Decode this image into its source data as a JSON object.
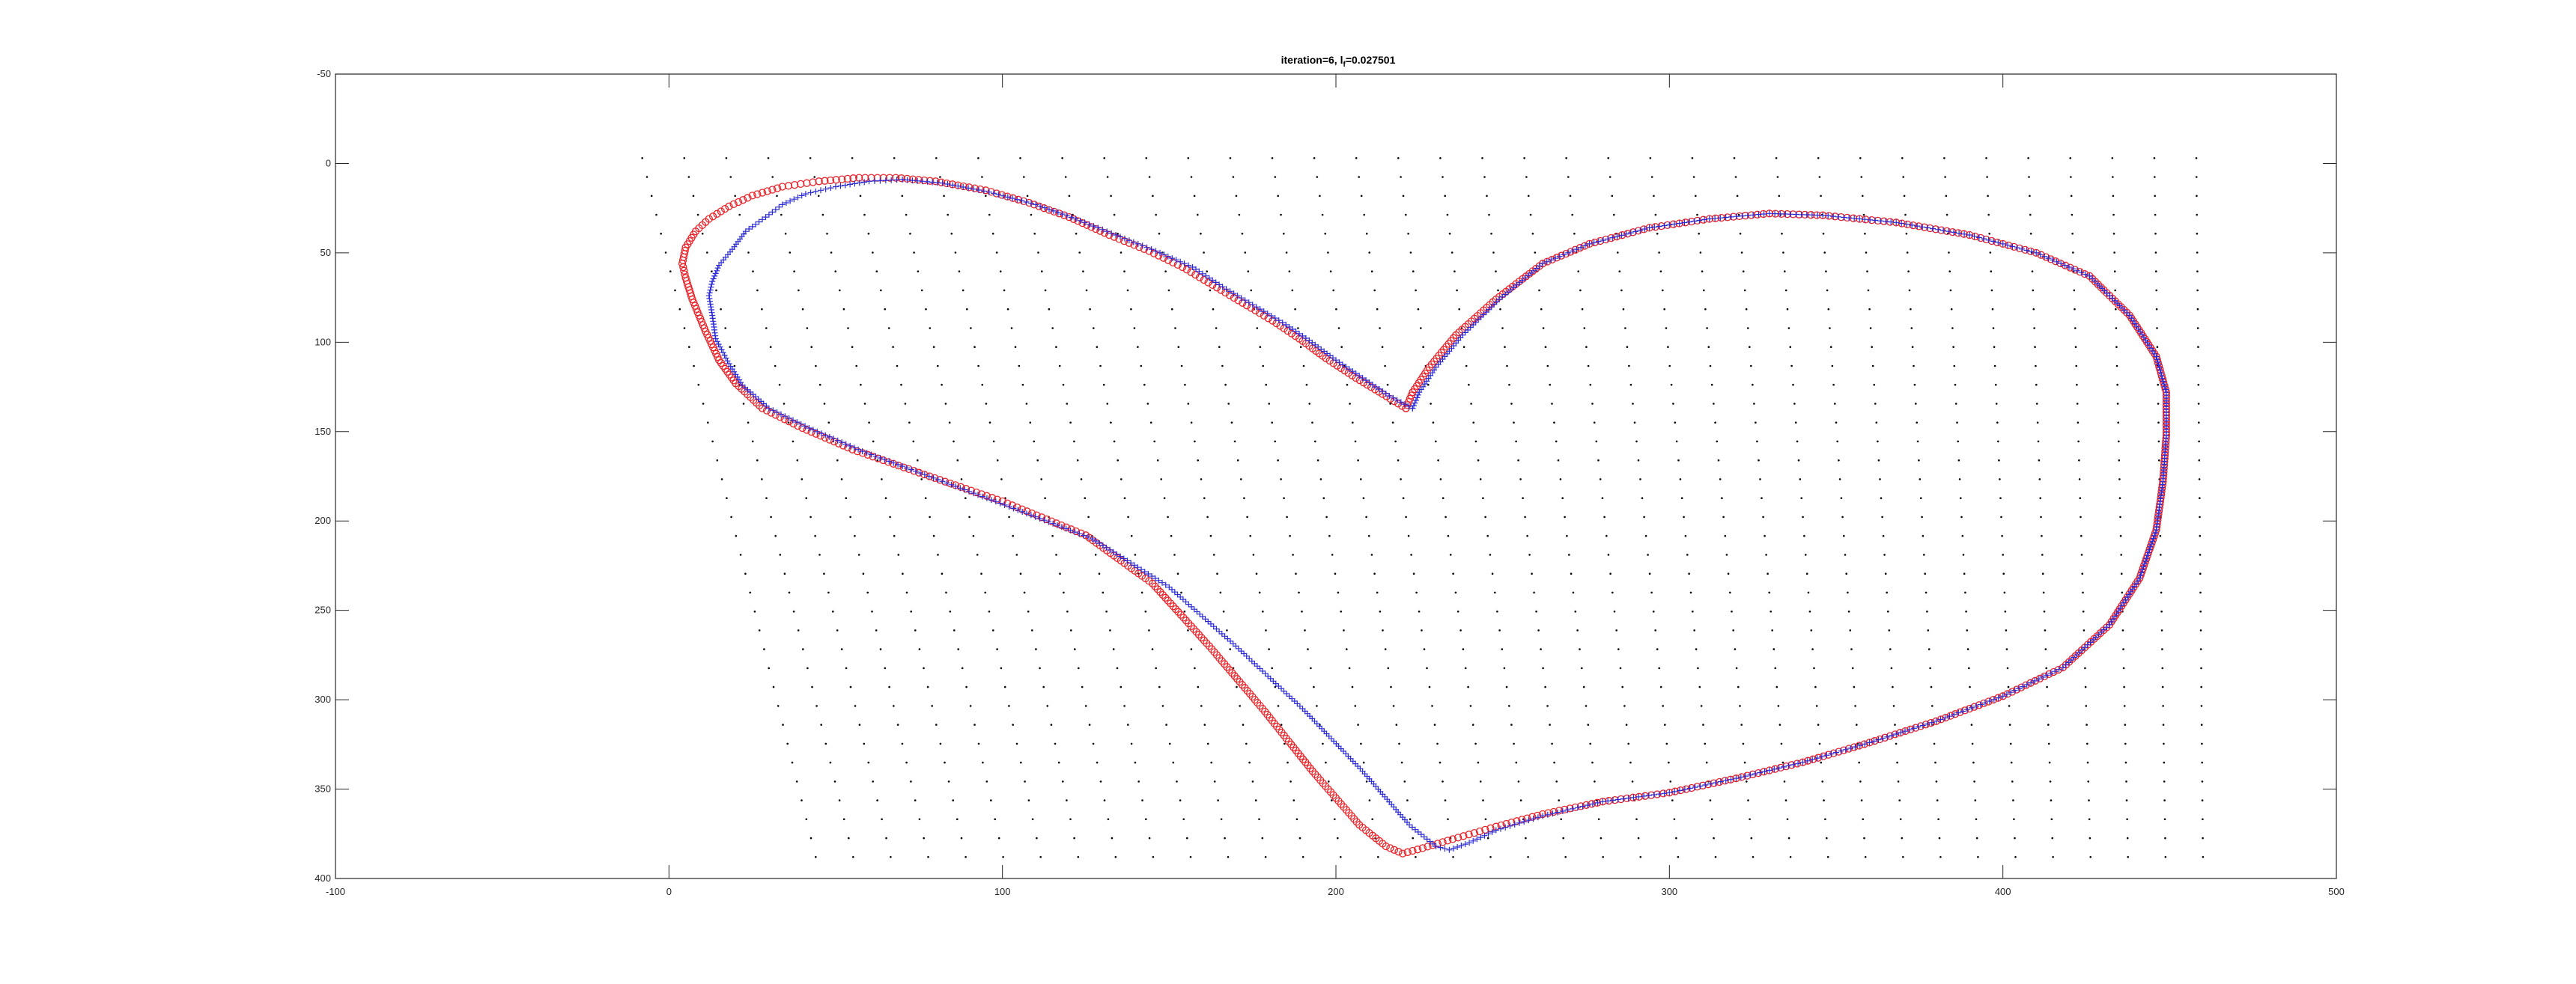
{
  "chart_data": {
    "type": "scatter",
    "title": "iteration=6,  l",
    "title_subscript": "f",
    "title_value": "=0.027501",
    "xlabel": "",
    "ylabel": "",
    "xlim": [
      -100,
      500
    ],
    "ylim": [
      -50,
      400
    ],
    "y_direction": "reverse",
    "x_ticks": [
      "-100",
      "0",
      "100",
      "200",
      "300",
      "400",
      "500"
    ],
    "y_ticks": [
      "-50",
      "0",
      "50",
      "100",
      "150",
      "200",
      "250",
      "300",
      "350",
      "400"
    ],
    "grid": false,
    "legend": "none",
    "series": [
      {
        "marker": "o",
        "color": "#e8242a",
        "points": [
          [
            221,
            137
          ],
          [
            214,
            129
          ],
          [
            206,
            120
          ],
          [
            197,
            109
          ],
          [
            189,
            98
          ],
          [
            181,
            88
          ],
          [
            172,
            78
          ],
          [
            163,
            68
          ],
          [
            154,
            58
          ],
          [
            144,
            49
          ],
          [
            132,
            40
          ],
          [
            120,
            30
          ],
          [
            108,
            22
          ],
          [
            95,
            15
          ],
          [
            80,
            10
          ],
          [
            68,
            8
          ],
          [
            57,
            8
          ],
          [
            45,
            10
          ],
          [
            34,
            13
          ],
          [
            25,
            18
          ],
          [
            18,
            24
          ],
          [
            12,
            31
          ],
          [
            8,
            38
          ],
          [
            5,
            47
          ],
          [
            4,
            56
          ],
          [
            5,
            64
          ],
          [
            7,
            76
          ],
          [
            11,
            94
          ],
          [
            15,
            110
          ],
          [
            20,
            123
          ],
          [
            28,
            137
          ],
          [
            40,
            148
          ],
          [
            55,
            160
          ],
          [
            75,
            173
          ],
          [
            100,
            189
          ],
          [
            125,
            208
          ],
          [
            145,
            235
          ],
          [
            162,
            270
          ],
          [
            178,
            305
          ],
          [
            193,
            340
          ],
          [
            207,
            370
          ],
          [
            215,
            382
          ],
          [
            220,
            386
          ],
          [
            226,
            383
          ],
          [
            235,
            378
          ],
          [
            248,
            371
          ],
          [
            262,
            364
          ],
          [
            280,
            357
          ],
          [
            300,
            352
          ],
          [
            320,
            344
          ],
          [
            340,
            335
          ],
          [
            360,
            324
          ],
          [
            380,
            312
          ],
          [
            400,
            298
          ],
          [
            418,
            282
          ],
          [
            432,
            258
          ],
          [
            441,
            232
          ],
          [
            446,
            205
          ],
          [
            448,
            178
          ],
          [
            449,
            152
          ],
          [
            449,
            128
          ],
          [
            446,
            108
          ],
          [
            438,
            85
          ],
          [
            426,
            63
          ],
          [
            410,
            50
          ],
          [
            390,
            40
          ],
          [
            368,
            33
          ],
          [
            346,
            29
          ],
          [
            330,
            28
          ],
          [
            312,
            31
          ],
          [
            294,
            36
          ],
          [
            276,
            45
          ],
          [
            262,
            56
          ],
          [
            248,
            76
          ],
          [
            236,
            96
          ],
          [
            228,
            114
          ],
          [
            223,
            128
          ],
          [
            221,
            137
          ]
        ]
      },
      {
        "marker": "+",
        "color": "#2b2bd6",
        "points": [
          [
            223,
            137
          ],
          [
            216,
            130
          ],
          [
            208,
            120
          ],
          [
            200,
            110
          ],
          [
            192,
            99
          ],
          [
            184,
            89
          ],
          [
            175,
            79
          ],
          [
            166,
            69
          ],
          [
            157,
            58
          ],
          [
            146,
            49
          ],
          [
            134,
            40
          ],
          [
            122,
            31
          ],
          [
            110,
            23
          ],
          [
            96,
            16
          ],
          [
            82,
            11
          ],
          [
            70,
            9
          ],
          [
            60,
            10
          ],
          [
            50,
            13
          ],
          [
            41,
            17
          ],
          [
            34,
            23
          ],
          [
            29,
            30
          ],
          [
            23,
            38
          ],
          [
            19,
            48
          ],
          [
            15,
            57
          ],
          [
            13,
            66
          ],
          [
            12,
            74
          ],
          [
            13,
            85
          ],
          [
            14,
            98
          ],
          [
            18,
            112
          ],
          [
            22,
            124
          ],
          [
            30,
            137
          ],
          [
            42,
            148
          ],
          [
            58,
            161
          ],
          [
            78,
            175
          ],
          [
            102,
            192
          ],
          [
            127,
            210
          ],
          [
            150,
            237
          ],
          [
            170,
            270
          ],
          [
            190,
            305
          ],
          [
            208,
            340
          ],
          [
            222,
            370
          ],
          [
            230,
            382
          ],
          [
            234,
            384
          ],
          [
            240,
            380
          ],
          [
            248,
            373
          ],
          [
            262,
            365
          ],
          [
            280,
            357
          ],
          [
            300,
            352
          ],
          [
            320,
            344
          ],
          [
            340,
            335
          ],
          [
            360,
            324
          ],
          [
            380,
            312
          ],
          [
            400,
            298
          ],
          [
            418,
            282
          ],
          [
            432,
            258
          ],
          [
            441,
            232
          ],
          [
            446,
            205
          ],
          [
            448,
            178
          ],
          [
            449,
            152
          ],
          [
            449,
            128
          ],
          [
            446,
            108
          ],
          [
            438,
            85
          ],
          [
            426,
            63
          ],
          [
            410,
            50
          ],
          [
            390,
            40
          ],
          [
            368,
            33
          ],
          [
            346,
            29
          ],
          [
            330,
            28
          ],
          [
            312,
            31
          ],
          [
            294,
            36
          ],
          [
            276,
            45
          ],
          [
            262,
            56
          ],
          [
            249,
            76
          ],
          [
            238,
            96
          ],
          [
            230,
            114
          ],
          [
            225,
            128
          ],
          [
            223,
            137
          ]
        ]
      },
      {
        "marker": ".",
        "color": "#000000",
        "grid_start_y": -3,
        "grid_end_y": 388,
        "grid_rows": 38,
        "grid_cols": 38,
        "left_top_x": -8,
        "left_bottom_x": 44,
        "right_top_x": 458,
        "right_bottom_x": 460
      }
    ]
  }
}
